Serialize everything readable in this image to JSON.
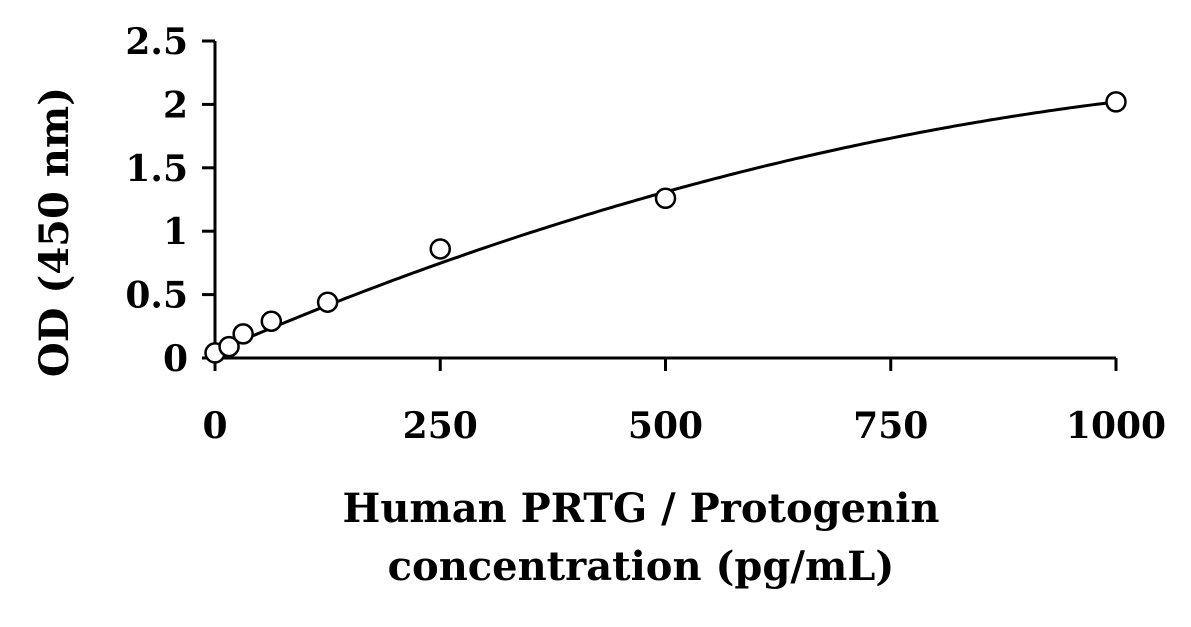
{
  "chart_data": {
    "type": "scatter",
    "xlabel_lines": [
      "Human PRTG / Protogenin",
      "concentration (pg/mL)"
    ],
    "ylabel": "OD (450 nm)",
    "xlim": [
      0,
      1000
    ],
    "ylim": [
      0,
      2.5
    ],
    "x_ticks": [
      0,
      250,
      500,
      750,
      1000
    ],
    "x_tick_labels": [
      "0",
      "250",
      "500",
      "750",
      "1000"
    ],
    "y_ticks": [
      0,
      0.5,
      1,
      1.5,
      2,
      2.5
    ],
    "y_tick_labels": [
      "0",
      "0.5",
      "1",
      "1.5",
      "2",
      "2.5"
    ],
    "grid": false,
    "series": [
      {
        "points": [
          {
            "x": 0,
            "y": 0.04
          },
          {
            "x": 15.6,
            "y": 0.09
          },
          {
            "x": 31.25,
            "y": 0.19
          },
          {
            "x": 62.5,
            "y": 0.29
          },
          {
            "x": 125,
            "y": 0.44
          },
          {
            "x": 250,
            "y": 0.86
          },
          {
            "x": 500,
            "y": 1.26
          },
          {
            "x": 1000,
            "y": 2.02
          }
        ],
        "marker": "open-circle",
        "color": "#000000"
      }
    ],
    "fit_curve": {
      "type": "quadratic",
      "coefficients": [
        0.048,
        0.003074,
        -1.102e-06
      ],
      "color": "#000000"
    }
  }
}
